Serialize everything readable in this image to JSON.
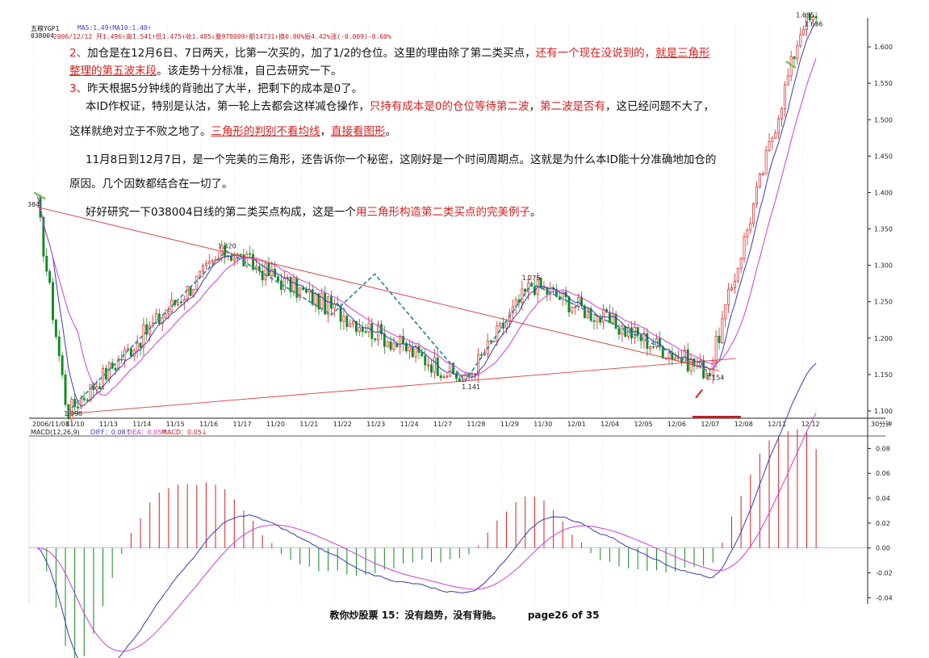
{
  "header": {
    "window_title": "五粮YGP1",
    "ma_line": "MA5:1.49↑MA10:1.40↑",
    "stock_line_code": "038004",
    "stock_line_stats": "2006/12/12 开1.496↑高1.541↑低1.475↑收1.485↓量978009↑额14731↑换0.00%振4.42%涨(-0.009)-0.60%"
  },
  "text": {
    "l1a": "2、",
    "l1b": "加仓是在12月6日、7日两天，比第一次买的，加了1/2的仓位。这里的理由除了第二类买点，",
    "l1c": "还有一个现在没说到的，",
    "l1d": "就是三角形",
    "l2a": "整理的第五波末段",
    "l2b": "。该走势十分标准，自己去研究一下。",
    "l3a": "3、",
    "l3b": "昨天根据5分钟线的背驰出了大半，把剩下的成本是0了。",
    "l4a": "本ID作权证，特别是认沽，第一轮上去都会这样减仓操作，",
    "l4b": "只持有成本是0的仓位等待第二波",
    "l4c": "，",
    "l4d": "第二波是否有",
    "l4e": "，这已经问题不大了，",
    "l5a": "这样就绝对立于不败之地了。",
    "l5b": "三角形的判别不看均线",
    "l5c": "，",
    "l5d": "直接看图形",
    "l5e": "。",
    "l6": "11月8日到12月7日，是一个完美的三角形，还告诉你一个秘密，这刚好是一个时间周期点。这就是为什么本ID能十分准确地加仓的",
    "l7": "原因。几个因数都结合在一切了。",
    "l8a": "好好研究一下038004日线的第二类买点构成，这是一个",
    "l8b": "用三角形构造第二类买点的完美例子",
    "l8c": "。"
  },
  "footer": {
    "title": "教你炒股票 15：没有趋势，没有背驰。",
    "page": "page26 of 35"
  },
  "chart_data": [
    {
      "type": "candlestick",
      "series_info": "30分钟",
      "x": [
        "2006/11/08",
        "11/10",
        "11/13",
        "11/14",
        "11/15",
        "11/16",
        "11/17",
        "11/20",
        "11/21",
        "11/22",
        "11/23",
        "11/24",
        "11/27",
        "11/28",
        "11/29",
        "11/30",
        "12/01",
        "12/04",
        "12/05",
        "12/06",
        "12/07",
        "12/08",
        "12/11",
        "12/12",
        "30分钟"
      ],
      "ylim": [
        1.09,
        1.64
      ],
      "y_ticks": [
        "1.100",
        "1.150",
        "1.200",
        "1.250",
        "1.300",
        "1.350",
        "1.400",
        "1.450",
        "1.500",
        "1.550",
        "1.600"
      ],
      "annotations": [
        "1.098",
        "1.320",
        "1.141",
        "1.275",
        "1.154",
        "1.635",
        "1.636",
        "384"
      ],
      "pivots": [
        {
          "x": 0.1,
          "y": 1.384
        },
        {
          "x": 1.0,
          "y": 1.098
        },
        {
          "x": 5.75,
          "y": 1.32
        },
        {
          "x": 12.9,
          "y": 1.141
        },
        {
          "x": 14.9,
          "y": 1.275
        },
        {
          "x": 20.2,
          "y": 1.154
        },
        {
          "x": 23.0,
          "y": 1.635
        }
      ],
      "colors": {
        "up": "#d82020",
        "down": "#108a20",
        "ma5": "#3a3ab8",
        "ma10": "#d03cd0",
        "trend": "#d84040",
        "wave": "#3a8a9a"
      }
    },
    {
      "type": "line",
      "title": "MACD(12,26,9)",
      "legend": [
        "DIFF：0.08↑",
        "DEA：0.05↑",
        "MACD：0.05↓"
      ],
      "ylim": [
        -0.045,
        0.09
      ],
      "y_ticks": [
        "-0.04",
        "-0.02",
        "0.00",
        "0.02",
        "0.04",
        "0.06",
        "0.08"
      ]
    }
  ]
}
